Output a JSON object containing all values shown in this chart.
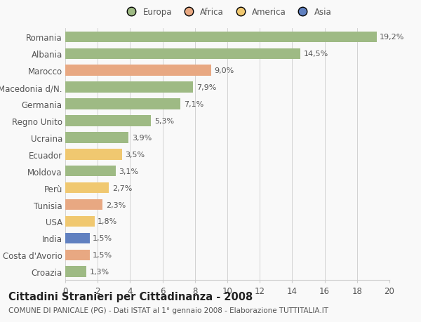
{
  "categories": [
    "Romania",
    "Albania",
    "Marocco",
    "Macedonia d/N.",
    "Germania",
    "Regno Unito",
    "Ucraina",
    "Ecuador",
    "Moldova",
    "Perù",
    "Tunisia",
    "USA",
    "India",
    "Costa d'Avorio",
    "Croazia"
  ],
  "values": [
    19.2,
    14.5,
    9.0,
    7.9,
    7.1,
    5.3,
    3.9,
    3.5,
    3.1,
    2.7,
    2.3,
    1.8,
    1.5,
    1.5,
    1.3
  ],
  "labels": [
    "19,2%",
    "14,5%",
    "9,0%",
    "7,9%",
    "7,1%",
    "5,3%",
    "3,9%",
    "3,5%",
    "3,1%",
    "2,7%",
    "2,3%",
    "1,8%",
    "1,5%",
    "1,5%",
    "1,3%"
  ],
  "continents": [
    "Europa",
    "Europa",
    "Africa",
    "Europa",
    "Europa",
    "Europa",
    "Europa",
    "America",
    "Europa",
    "America",
    "Africa",
    "America",
    "Asia",
    "Africa",
    "Europa"
  ],
  "colors": {
    "Europa": "#9eba84",
    "Africa": "#e8a882",
    "America": "#f0c870",
    "Asia": "#6080c0"
  },
  "legend_colors": {
    "Europa": "#9eba84",
    "Africa": "#e8a882",
    "America": "#f0c870",
    "Asia": "#6080c0"
  },
  "title": "Cittadini Stranieri per Cittadinanza - 2008",
  "subtitle": "COMUNE DI PANICALE (PG) - Dati ISTAT al 1° gennaio 2008 - Elaborazione TUTTITALIA.IT",
  "xlim": [
    0,
    20
  ],
  "xticks": [
    0,
    2,
    4,
    6,
    8,
    10,
    12,
    14,
    16,
    18,
    20
  ],
  "background_color": "#f9f9f9",
  "bar_height": 0.65,
  "grid_color": "#cccccc",
  "label_fontsize": 8,
  "tick_fontsize": 8.5,
  "ytick_fontsize": 8.5,
  "title_fontsize": 10.5,
  "subtitle_fontsize": 7.5
}
